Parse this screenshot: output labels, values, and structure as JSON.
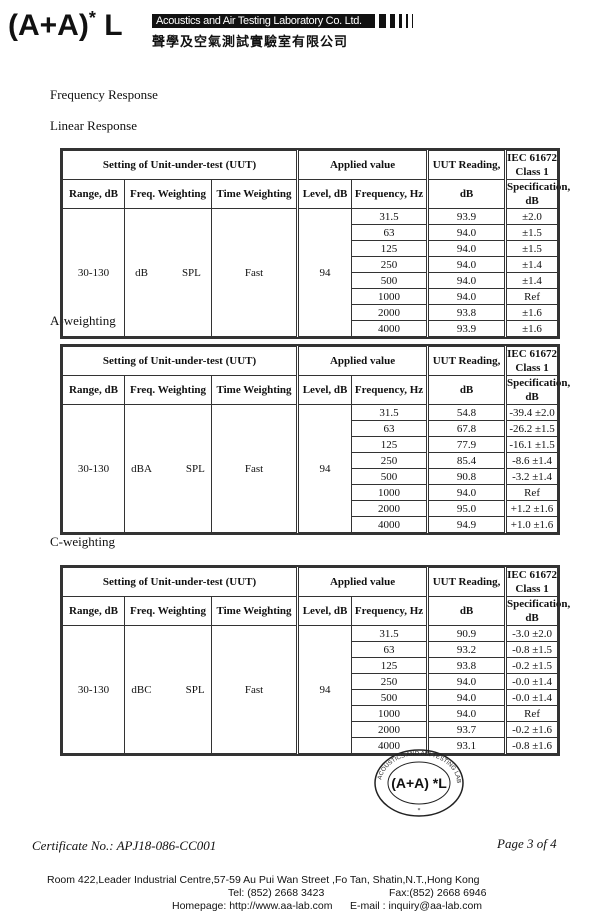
{
  "header": {
    "logo": "(A+A)*L",
    "logo_main": "(A+A)",
    "logo_sup": "*",
    "logo_end": "L",
    "company_en": "Acoustics and Air Testing Laboratory Co. Ltd.",
    "company_zh": "聲學及空氣測試實驗室有限公司"
  },
  "title": "Frequency Response",
  "columns": {
    "group1": "Setting of Unit-under-test (UUT)",
    "group2": "Applied value",
    "uut1": "UUT Reading,",
    "uut2": "dB",
    "iec1": "IEC 61672 Class 1",
    "iec2": "Specification, dB",
    "range": "Range, dB",
    "freq_weighting": "Freq. Weighting",
    "time_weighting": "Time Weighting",
    "level": "Level, dB",
    "frequency": "Frequency, Hz"
  },
  "tables": [
    {
      "title": "Linear Response",
      "range": "30-130",
      "weighting": "dB",
      "spl": "SPL",
      "time": "Fast",
      "level": "94",
      "rows": [
        [
          "31.5",
          "93.9",
          "±2.0"
        ],
        [
          "63",
          "94.0",
          "±1.5"
        ],
        [
          "125",
          "94.0",
          "±1.5"
        ],
        [
          "250",
          "94.0",
          "±1.4"
        ],
        [
          "500",
          "94.0",
          "±1.4"
        ],
        [
          "1000",
          "94.0",
          "Ref"
        ],
        [
          "2000",
          "93.8",
          "±1.6"
        ],
        [
          "4000",
          "93.9",
          "±1.6"
        ]
      ]
    },
    {
      "title": "A-weighting",
      "range": "30-130",
      "weighting": "dBA",
      "spl": "SPL",
      "time": "Fast",
      "level": "94",
      "rows": [
        [
          "31.5",
          "54.8",
          "-39.4 ±2.0"
        ],
        [
          "63",
          "67.8",
          "-26.2 ±1.5"
        ],
        [
          "125",
          "77.9",
          "-16.1 ±1.5"
        ],
        [
          "250",
          "85.4",
          "-8.6 ±1.4"
        ],
        [
          "500",
          "90.8",
          "-3.2 ±1.4"
        ],
        [
          "1000",
          "94.0",
          "Ref"
        ],
        [
          "2000",
          "95.0",
          "+1.2 ±1.6"
        ],
        [
          "4000",
          "94.9",
          "+1.0 ±1.6"
        ]
      ]
    },
    {
      "title": "C-weighting",
      "range": "30-130",
      "weighting": "dBC",
      "spl": "SPL",
      "time": "Fast",
      "level": "94",
      "rows": [
        [
          "31.5",
          "90.9",
          "-3.0 ±2.0"
        ],
        [
          "63",
          "93.2",
          "-0.8 ±1.5"
        ],
        [
          "125",
          "93.8",
          "-0.2 ±1.5"
        ],
        [
          "250",
          "94.0",
          "-0.0 ±1.4"
        ],
        [
          "500",
          "94.0",
          "-0.0 ±1.4"
        ],
        [
          "1000",
          "94.0",
          "Ref"
        ],
        [
          "2000",
          "93.7",
          "-0.2 ±1.6"
        ],
        [
          "4000",
          "93.1",
          "-0.8 ±1.6"
        ]
      ]
    }
  ],
  "stamp": {
    "ring_text": "ACOUSTICS AND AIR TESTING LABORATORY CO LTD",
    "center": "(A+A) *L"
  },
  "footer": {
    "certificate": "Certificate No.: APJ18-086-CC001",
    "page": "Page 3 of 4",
    "address": "Room 422,Leader Industrial Centre,57-59 Au Pui Wan Street ,Fo Tan, Shatin,N.T.,Hong Kong",
    "tel": "Tel: (852) 2668 3423",
    "fax": "Fax:(852) 2668 6946",
    "homepage": "Homepage: http://www.aa-lab.com",
    "email": "E-mail : inquiry@aa-lab.com"
  }
}
